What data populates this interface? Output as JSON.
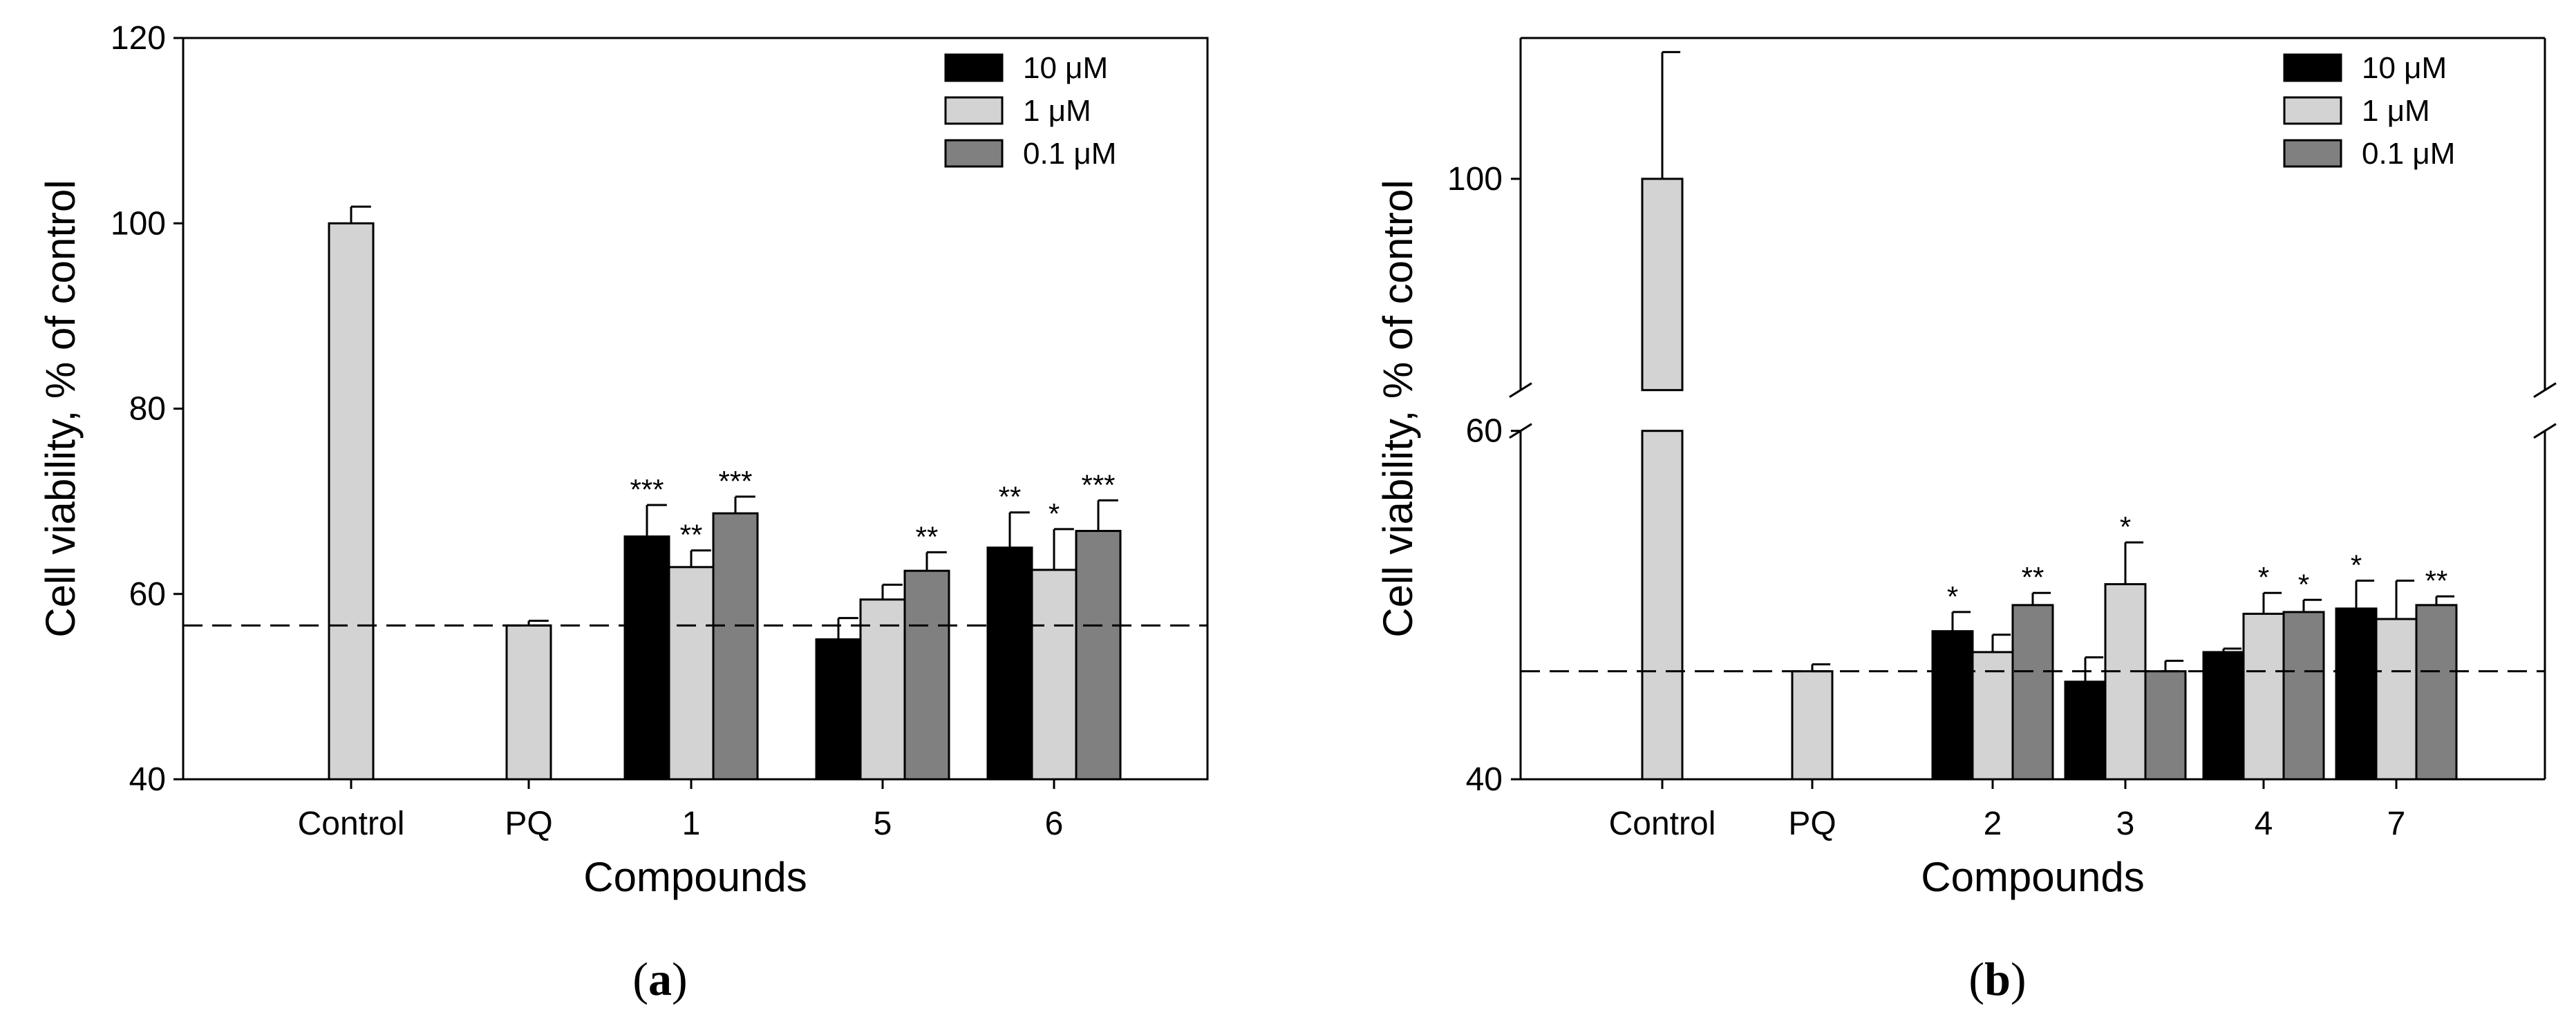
{
  "chart_data": [
    {
      "type": "bar",
      "panel_label": "a",
      "xlabel": "Compounds",
      "ylabel": "Cell viability, % of control",
      "ylim": [
        40,
        120
      ],
      "yticks": [
        40,
        60,
        80,
        100,
        120
      ],
      "reference_line": 56.6,
      "legend": {
        "placement": "top-right",
        "entries": [
          "10 μM",
          "1 μM",
          "0.1 μM"
        ]
      },
      "series_colors": [
        "#000000",
        "#d3d3d3",
        "#808080"
      ],
      "groups": [
        {
          "label": "Control",
          "bars": [
            {
              "series": 1,
              "value": 100,
              "error": 1.8,
              "sig": ""
            }
          ]
        },
        {
          "label": "PQ",
          "bars": [
            {
              "series": 1,
              "value": 56.6,
              "error": 0.5,
              "sig": ""
            }
          ]
        },
        {
          "label": "1",
          "bars": [
            {
              "series": 0,
              "value": 66.2,
              "error": 3.4,
              "sig": "***"
            },
            {
              "series": 1,
              "value": 62.9,
              "error": 1.8,
              "sig": "**"
            },
            {
              "series": 2,
              "value": 68.7,
              "error": 1.8,
              "sig": "***"
            }
          ]
        },
        {
          "label": "5",
          "bars": [
            {
              "series": 0,
              "value": 55.1,
              "error": 2.3,
              "sig": ""
            },
            {
              "series": 1,
              "value": 59.4,
              "error": 1.6,
              "sig": ""
            },
            {
              "series": 2,
              "value": 62.5,
              "error": 2.0,
              "sig": "**"
            }
          ]
        },
        {
          "label": "6",
          "bars": [
            {
              "series": 0,
              "value": 65.0,
              "error": 3.8,
              "sig": "**"
            },
            {
              "series": 1,
              "value": 62.6,
              "error": 4.4,
              "sig": "*"
            },
            {
              "series": 2,
              "value": 66.8,
              "error": 3.3,
              "sig": "***"
            }
          ]
        }
      ]
    },
    {
      "type": "bar",
      "panel_label": "b",
      "xlabel": "Compounds",
      "ylabel": "Cell viability, % of control",
      "ylim": [
        40,
        110
      ],
      "axis_break": [
        60,
        85
      ],
      "yticks": [
        40,
        60,
        100
      ],
      "reference_line": 46.2,
      "legend": {
        "placement": "top-right",
        "entries": [
          "10 μM",
          "1 μM",
          "0.1 μM"
        ]
      },
      "series_colors": [
        "#000000",
        "#d3d3d3",
        "#808080"
      ],
      "groups": [
        {
          "label": "Control",
          "bars": [
            {
              "series": 1,
              "value": 100,
              "error": 9.0,
              "sig": ""
            }
          ]
        },
        {
          "label": "PQ",
          "bars": [
            {
              "series": 1,
              "value": 46.2,
              "error": 0.4,
              "sig": ""
            }
          ]
        },
        {
          "label": "2",
          "bars": [
            {
              "series": 0,
              "value": 48.5,
              "error": 1.1,
              "sig": "*"
            },
            {
              "series": 1,
              "value": 47.3,
              "error": 1.0,
              "sig": ""
            },
            {
              "series": 2,
              "value": 50.0,
              "error": 0.7,
              "sig": "**"
            }
          ]
        },
        {
          "label": "3",
          "bars": [
            {
              "series": 0,
              "value": 45.6,
              "error": 1.4,
              "sig": ""
            },
            {
              "series": 1,
              "value": 51.2,
              "error": 2.4,
              "sig": "*"
            },
            {
              "series": 2,
              "value": 46.2,
              "error": 0.6,
              "sig": ""
            }
          ]
        },
        {
          "label": "4",
          "bars": [
            {
              "series": 0,
              "value": 47.3,
              "error": 0.2,
              "sig": ""
            },
            {
              "series": 1,
              "value": 49.5,
              "error": 1.2,
              "sig": "*"
            },
            {
              "series": 2,
              "value": 49.6,
              "error": 0.7,
              "sig": "*"
            }
          ]
        },
        {
          "label": "7",
          "bars": [
            {
              "series": 0,
              "value": 49.8,
              "error": 1.6,
              "sig": "*"
            },
            {
              "series": 1,
              "value": 49.2,
              "error": 2.2,
              "sig": ""
            },
            {
              "series": 2,
              "value": 50.0,
              "error": 0.5,
              "sig": "**"
            }
          ]
        }
      ]
    }
  ]
}
